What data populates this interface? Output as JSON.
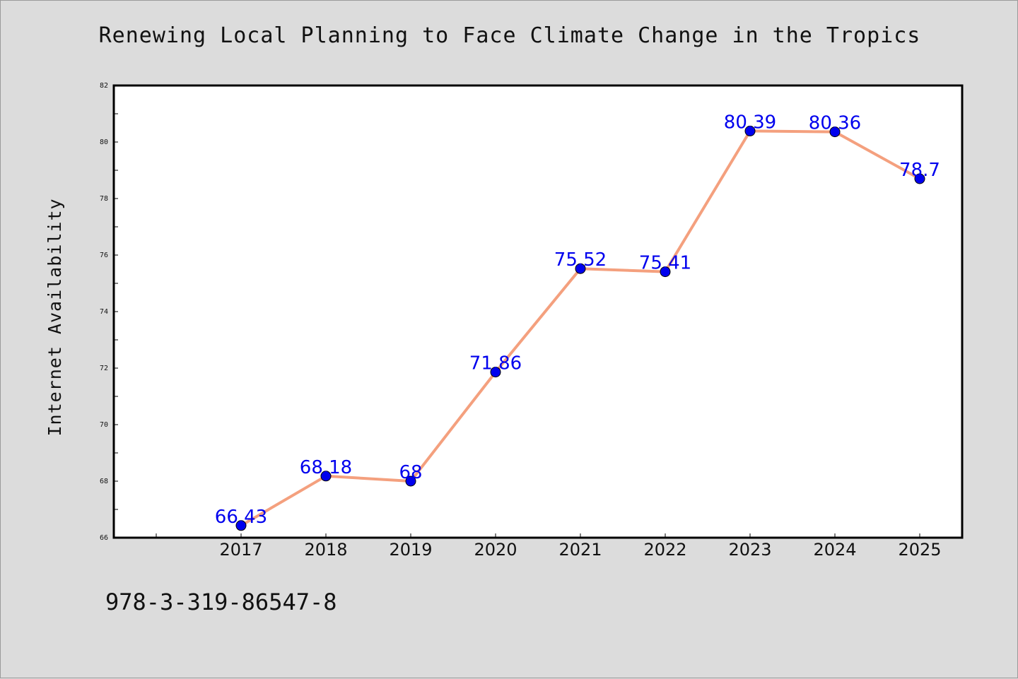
{
  "chart_data": {
    "type": "line",
    "title": "Renewing Local Planning to Face Climate Change in the Tropics",
    "xlabel": "",
    "ylabel": "Internet Availability",
    "categories": [
      "2017",
      "2018",
      "2019",
      "2020",
      "2021",
      "2022",
      "2023",
      "2024",
      "2025"
    ],
    "series": [
      {
        "values": [
          66.43,
          68.18,
          68,
          71.86,
          75.52,
          75.41,
          80.39,
          80.36,
          78.7
        ],
        "labels": [
          "66.43",
          "68.18",
          "68",
          "71.86",
          "75.52",
          "75.41",
          "80.39",
          "80.36",
          "78.7"
        ]
      }
    ],
    "ylim": [
      66,
      82
    ],
    "yticks": [
      "66",
      "68",
      "70",
      "72",
      "74",
      "76",
      "78",
      "80",
      "82"
    ],
    "grid": false,
    "legend": "none",
    "colors": {
      "line": "#f4a07e",
      "marker": "#0000ee",
      "label": "#0000ee",
      "background": "#dcdcdc",
      "plot_background": "#ffffff"
    }
  },
  "footer": {
    "isbn": "978-3-319-86547-8"
  }
}
